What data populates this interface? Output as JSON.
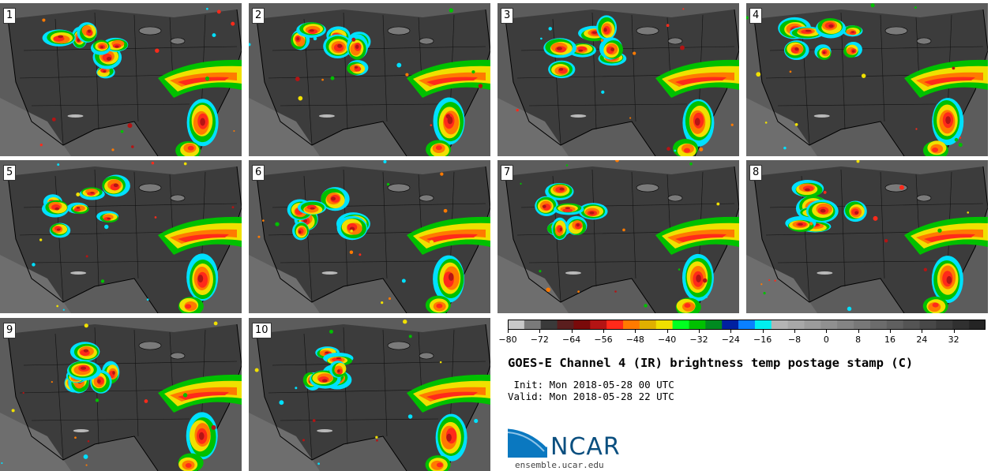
{
  "panels": [
    {
      "label": "1"
    },
    {
      "label": "2"
    },
    {
      "label": "3"
    },
    {
      "label": "4"
    },
    {
      "label": "5"
    },
    {
      "label": "6"
    },
    {
      "label": "7"
    },
    {
      "label": "8"
    },
    {
      "label": "9"
    },
    {
      "label": "10"
    }
  ],
  "colorbar": {
    "ticks": [
      "−80",
      "−72",
      "−64",
      "−56",
      "−48",
      "−40",
      "−32",
      "−24",
      "−16",
      "−8",
      "0",
      "8",
      "16",
      "24",
      "32"
    ],
    "range": [
      -80,
      40
    ],
    "colors": [
      "#c8c8c8",
      "#7a7a7a",
      "#3a3a3a",
      "#5a1e1e",
      "#7a0a0a",
      "#b41414",
      "#ff2a1a",
      "#ff7a00",
      "#e0b000",
      "#f0e000",
      "#00ff20",
      "#00c000",
      "#008a20",
      "#0020a0",
      "#0a80ff",
      "#00f0f0",
      "#b4b4b4",
      "#a8a8a8",
      "#9c9c9c",
      "#909090",
      "#848484",
      "#787878",
      "#6c6c6c",
      "#606060",
      "#545454",
      "#484848",
      "#3c3c3c",
      "#303030",
      "#242424"
    ]
  },
  "title": "GOES-E Channel 4 (IR) brightness temp postage stamp (C)",
  "init": " Init: Mon 2018-05-28 00 UTC",
  "valid": "Valid: Mon 2018-05-28 22 UTC",
  "logo": {
    "text": "NCAR",
    "color": "#0b4f7f"
  },
  "website": "ensemble.ucar.edu"
}
